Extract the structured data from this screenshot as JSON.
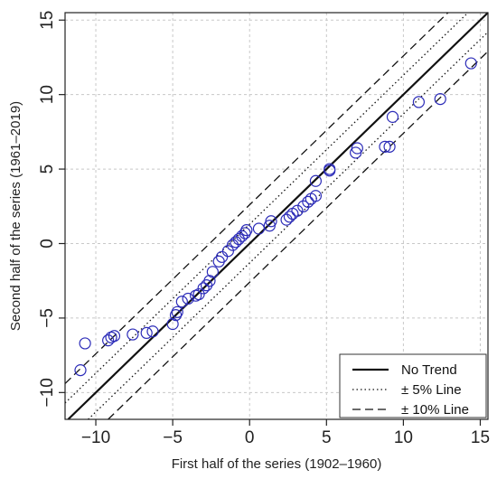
{
  "chart_data": {
    "type": "scatter",
    "xlabel": "First half of the series (1902–1960)",
    "ylabel": "Second half of the series (1961–2019)",
    "xlim": [
      -12,
      15.5
    ],
    "ylim": [
      -11.8,
      15.5
    ],
    "x_ticks": [
      -10,
      -5,
      0,
      5,
      10,
      15
    ],
    "y_ticks": [
      -10,
      -5,
      0,
      5,
      10,
      15
    ],
    "x_tick_labels": [
      "−10",
      "−5",
      "0",
      "5",
      "10",
      "15"
    ],
    "y_tick_labels": [
      "−10",
      "−5",
      "0",
      "5",
      "10",
      "15"
    ],
    "grid": true,
    "marker_color": "#2b2bb8",
    "lines": [
      {
        "name": "No Trend",
        "offset": 0,
        "style": "solid"
      },
      {
        "name": "± 5% Line",
        "offset": 1.3,
        "style": "dotted"
      },
      {
        "name": "± 10% Line",
        "offset": 2.6,
        "style": "dashed"
      }
    ],
    "legend": {
      "position": "bottom-right",
      "entries": [
        "No Trend",
        "± 5% Line",
        "± 10% Line"
      ]
    },
    "points": [
      {
        "x": -11.0,
        "y": -8.5
      },
      {
        "x": -10.7,
        "y": -6.7
      },
      {
        "x": -9.2,
        "y": -6.5
      },
      {
        "x": -9.0,
        "y": -6.3
      },
      {
        "x": -8.8,
        "y": -6.2
      },
      {
        "x": -7.6,
        "y": -6.1
      },
      {
        "x": -6.7,
        "y": -6.0
      },
      {
        "x": -6.3,
        "y": -5.9
      },
      {
        "x": -5.0,
        "y": -5.4
      },
      {
        "x": -4.8,
        "y": -4.8
      },
      {
        "x": -4.7,
        "y": -4.6
      },
      {
        "x": -4.4,
        "y": -3.9
      },
      {
        "x": -4.0,
        "y": -3.7
      },
      {
        "x": -3.5,
        "y": -3.5
      },
      {
        "x": -3.3,
        "y": -3.4
      },
      {
        "x": -3.0,
        "y": -3.0
      },
      {
        "x": -2.8,
        "y": -2.8
      },
      {
        "x": -2.6,
        "y": -2.5
      },
      {
        "x": -2.4,
        "y": -1.9
      },
      {
        "x": -2.0,
        "y": -1.2
      },
      {
        "x": -1.8,
        "y": -0.9
      },
      {
        "x": -1.4,
        "y": -0.5
      },
      {
        "x": -1.1,
        "y": -0.1
      },
      {
        "x": -0.9,
        "y": 0.1
      },
      {
        "x": -0.7,
        "y": 0.3
      },
      {
        "x": -0.5,
        "y": 0.5
      },
      {
        "x": -0.3,
        "y": 0.7
      },
      {
        "x": -0.2,
        "y": 0.9
      },
      {
        "x": 0.6,
        "y": 1.0
      },
      {
        "x": 1.3,
        "y": 1.2
      },
      {
        "x": 1.4,
        "y": 1.5
      },
      {
        "x": 2.4,
        "y": 1.6
      },
      {
        "x": 2.6,
        "y": 1.8
      },
      {
        "x": 2.8,
        "y": 2.0
      },
      {
        "x": 3.1,
        "y": 2.2
      },
      {
        "x": 3.5,
        "y": 2.5
      },
      {
        "x": 3.8,
        "y": 2.8
      },
      {
        "x": 4.0,
        "y": 3.0
      },
      {
        "x": 4.3,
        "y": 3.2
      },
      {
        "x": 4.3,
        "y": 4.2
      },
      {
        "x": 5.2,
        "y": 4.9
      },
      {
        "x": 5.2,
        "y": 5.0
      },
      {
        "x": 6.9,
        "y": 6.1
      },
      {
        "x": 7.0,
        "y": 6.4
      },
      {
        "x": 8.8,
        "y": 6.5
      },
      {
        "x": 9.1,
        "y": 6.5
      },
      {
        "x": 9.3,
        "y": 8.5
      },
      {
        "x": 11.0,
        "y": 9.5
      },
      {
        "x": 12.4,
        "y": 9.7
      },
      {
        "x": 14.4,
        "y": 12.1
      }
    ]
  }
}
